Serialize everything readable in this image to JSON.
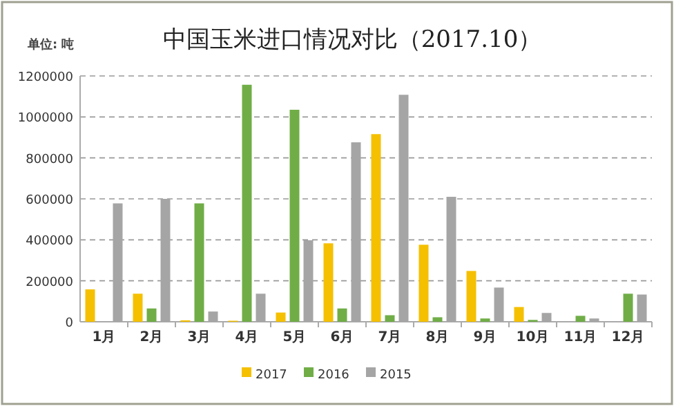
{
  "chart_data": {
    "type": "bar",
    "title": "中国玉米进口情况对比（2017.10）",
    "ylabel": "单位: 吨",
    "categories": [
      "1月",
      "2月",
      "3月",
      "4月",
      "5月",
      "6月",
      "7月",
      "8月",
      "9月",
      "10月",
      "11月",
      "12月"
    ],
    "series": [
      {
        "name": "2017",
        "color": "#f5c000",
        "values": [
          158000,
          137000,
          7000,
          5000,
          45000,
          383000,
          916000,
          376000,
          248000,
          72000,
          null,
          null
        ]
      },
      {
        "name": "2016",
        "color": "#70ad47",
        "values": [
          0,
          65000,
          578000,
          1157000,
          1035000,
          65000,
          32000,
          22000,
          16000,
          9000,
          29000,
          137000
        ]
      },
      {
        "name": "2015",
        "color": "#a5a5a5",
        "values": [
          578000,
          600000,
          50000,
          137000,
          398000,
          876000,
          1108000,
          610000,
          167000,
          43000,
          16000,
          133000
        ]
      }
    ],
    "ylim": [
      0,
      1200000
    ],
    "yticks": [
      0,
      200000,
      400000,
      600000,
      800000,
      1000000,
      1200000
    ],
    "grid": "y",
    "legend": "bottom"
  }
}
